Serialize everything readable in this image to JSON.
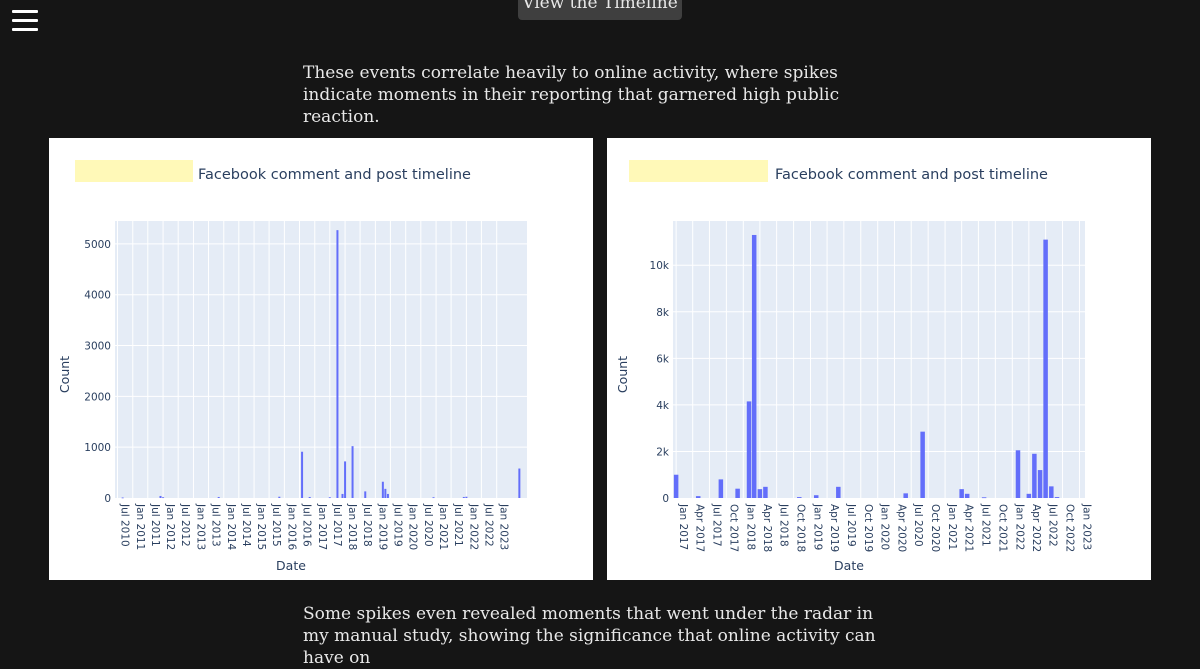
{
  "nav": {
    "menu_icon": "hamburger-menu-icon"
  },
  "timeline_button": {
    "label": "View the Timeline"
  },
  "intro_text": "These events correlate heavily to online activity, where spikes indicate moments in their reporting that garnered high public reaction.",
  "outro_text": "Some spikes even revealed moments that went under the radar in my manual study, showing the significance that online activity can have on",
  "colors": {
    "page_bg": "#151515",
    "bar": "#636efa",
    "plot_bg": "#e5ecf6",
    "highlight": "#fff9b8"
  },
  "chart_data": [
    {
      "type": "bar",
      "title": "Facebook comment and post timeline",
      "xlabel": "Date",
      "ylabel": "Count",
      "ylim": [
        0,
        5450
      ],
      "xlim": [
        "2010-06-01",
        "2024-01-01"
      ],
      "y_ticks": [
        0,
        1000,
        2000,
        3000,
        4000,
        5000
      ],
      "y_tick_labels": [
        "0",
        "1000",
        "2000",
        "3000",
        "4000",
        "5000"
      ],
      "x_ticks": [
        "2010-07-01",
        "2011-01-01",
        "2011-07-01",
        "2012-01-01",
        "2012-07-01",
        "2013-01-01",
        "2013-07-01",
        "2014-01-01",
        "2014-07-01",
        "2015-01-01",
        "2015-07-01",
        "2016-01-01",
        "2016-07-01",
        "2017-01-01",
        "2017-07-01",
        "2018-01-01",
        "2018-07-01",
        "2019-01-01",
        "2019-07-01",
        "2020-01-01",
        "2020-07-01",
        "2021-01-01",
        "2021-07-01",
        "2022-01-01",
        "2022-07-01",
        "2023-01-01"
      ],
      "x_tick_labels": [
        "Jul 2010",
        "Jan 2011",
        "Jul 2011",
        "Jan 2012",
        "Jul 2012",
        "Jan 2013",
        "Jul 2013",
        "Jan 2014",
        "Jul 2014",
        "Jan 2015",
        "Jul 2015",
        "Jan 2016",
        "Jul 2016",
        "Jan 2017",
        "Jul 2017",
        "Jan 2018",
        "Jul 2018",
        "Jan 2019",
        "Jul 2019",
        "Jan 2020",
        "Jul 2020",
        "Jan 2021",
        "Jul 2021",
        "Jan 2022",
        "Jul 2022",
        "Jan 2023"
      ],
      "grid": true,
      "bars": [
        {
          "x": "2010-09-01",
          "y": 10
        },
        {
          "x": "2011-12-01",
          "y": 40
        },
        {
          "x": "2012-01-01",
          "y": 15
        },
        {
          "x": "2013-11-01",
          "y": 20
        },
        {
          "x": "2015-11-01",
          "y": 25
        },
        {
          "x": "2016-08-01",
          "y": 910
        },
        {
          "x": "2016-11-01",
          "y": 20
        },
        {
          "x": "2017-07-01",
          "y": 15
        },
        {
          "x": "2017-10-01",
          "y": 5270
        },
        {
          "x": "2017-12-01",
          "y": 80
        },
        {
          "x": "2018-01-01",
          "y": 720
        },
        {
          "x": "2018-04-01",
          "y": 1020
        },
        {
          "x": "2018-09-01",
          "y": 130
        },
        {
          "x": "2019-04-01",
          "y": 320
        },
        {
          "x": "2019-05-01",
          "y": 180
        },
        {
          "x": "2019-06-01",
          "y": 80
        },
        {
          "x": "2020-12-01",
          "y": 15
        },
        {
          "x": "2021-12-01",
          "y": 20
        },
        {
          "x": "2022-01-01",
          "y": 25
        },
        {
          "x": "2023-10-01",
          "y": 580
        }
      ]
    },
    {
      "type": "bar",
      "title": "Facebook comment and post timeline",
      "xlabel": "Date",
      "ylabel": "Count",
      "ylim": [
        0,
        11900
      ],
      "xlim": [
        "2016-12-15",
        "2023-01-31"
      ],
      "y_ticks": [
        0,
        2000,
        4000,
        6000,
        8000,
        10000
      ],
      "y_tick_labels": [
        "0",
        "2k",
        "4k",
        "6k",
        "8k",
        "10k"
      ],
      "x_ticks": [
        "2017-01-01",
        "2017-04-01",
        "2017-07-01",
        "2017-10-01",
        "2018-01-01",
        "2018-04-01",
        "2018-07-01",
        "2018-10-01",
        "2019-01-01",
        "2019-04-01",
        "2019-07-01",
        "2019-10-01",
        "2020-01-01",
        "2020-04-01",
        "2020-07-01",
        "2020-10-01",
        "2021-01-01",
        "2021-04-01",
        "2021-07-01",
        "2021-10-01",
        "2022-01-01",
        "2022-04-01",
        "2022-07-01",
        "2022-10-01",
        "2023-01-01"
      ],
      "x_tick_labels": [
        "Jan 2017",
        "Apr 2017",
        "Jul 2017",
        "Oct 2017",
        "Jan 2018",
        "Apr 2018",
        "Jul 2018",
        "Oct 2018",
        "Jan 2019",
        "Apr 2019",
        "Jul 2019",
        "Oct 2019",
        "Jan 2020",
        "Apr 2020",
        "Jul 2020",
        "Oct 2020",
        "Jan 2021",
        "Apr 2021",
        "Jul 2021",
        "Oct 2021",
        "Jan 2022",
        "Apr 2022",
        "Jul 2022",
        "Oct 2022",
        "Jan 2023"
      ],
      "grid": true,
      "bars": [
        {
          "x": "2017-01-01",
          "y": 1000
        },
        {
          "x": "2017-05-01",
          "y": 80
        },
        {
          "x": "2017-09-01",
          "y": 800
        },
        {
          "x": "2017-12-01",
          "y": 400
        },
        {
          "x": "2018-02-01",
          "y": 4150
        },
        {
          "x": "2018-03-01",
          "y": 11300
        },
        {
          "x": "2018-04-01",
          "y": 380
        },
        {
          "x": "2018-05-01",
          "y": 480
        },
        {
          "x": "2018-11-01",
          "y": 40
        },
        {
          "x": "2019-02-01",
          "y": 120
        },
        {
          "x": "2019-06-01",
          "y": 480
        },
        {
          "x": "2020-06-01",
          "y": 200
        },
        {
          "x": "2020-09-01",
          "y": 2850
        },
        {
          "x": "2021-04-01",
          "y": 380
        },
        {
          "x": "2021-05-01",
          "y": 180
        },
        {
          "x": "2021-08-01",
          "y": 30
        },
        {
          "x": "2022-02-01",
          "y": 2050
        },
        {
          "x": "2022-04-01",
          "y": 180
        },
        {
          "x": "2022-05-01",
          "y": 1900
        },
        {
          "x": "2022-06-01",
          "y": 1200
        },
        {
          "x": "2022-07-01",
          "y": 11100
        },
        {
          "x": "2022-08-01",
          "y": 500
        },
        {
          "x": "2022-09-01",
          "y": 40
        }
      ]
    }
  ]
}
